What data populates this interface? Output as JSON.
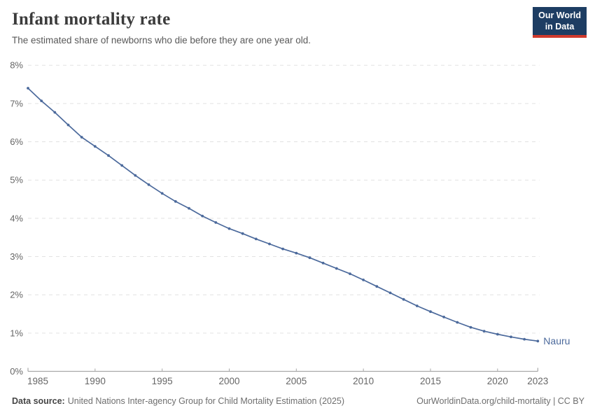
{
  "header": {
    "title": "Infant mortality rate",
    "subtitle": "The estimated share of newborns who die before they are one year old.",
    "logo": {
      "line1": "Our World",
      "line2": "in Data",
      "bg_color": "#1d3d63",
      "accent_color": "#cf3a2d"
    }
  },
  "chart_data": {
    "type": "line",
    "title": "Infant mortality rate",
    "xlabel": "",
    "ylabel": "",
    "grid": "horizontal-dashed",
    "legend_position": "end-of-line-label",
    "xlim": [
      1985,
      2023
    ],
    "ylim": [
      0,
      8
    ],
    "x_ticks": [
      1985,
      1990,
      1995,
      2000,
      2005,
      2010,
      2015,
      2020,
      2023
    ],
    "y_tick_values": [
      0,
      1,
      2,
      3,
      4,
      5,
      6,
      7,
      8
    ],
    "y_tick_labels": [
      "0%",
      "1%",
      "2%",
      "3%",
      "4%",
      "5%",
      "6%",
      "7%",
      "8%"
    ],
    "years": [
      1985,
      1986,
      1987,
      1988,
      1989,
      1990,
      1991,
      1992,
      1993,
      1994,
      1995,
      1996,
      1997,
      1998,
      1999,
      2000,
      2001,
      2002,
      2003,
      2004,
      2005,
      2006,
      2007,
      2008,
      2009,
      2010,
      2011,
      2012,
      2013,
      2014,
      2015,
      2016,
      2017,
      2018,
      2019,
      2020,
      2021,
      2022,
      2023
    ],
    "series": [
      {
        "name": "Nauru",
        "color": "#4c6a9c",
        "values": [
          7.4,
          7.07,
          6.77,
          6.44,
          6.12,
          5.88,
          5.64,
          5.38,
          5.12,
          4.88,
          4.65,
          4.44,
          4.26,
          4.06,
          3.89,
          3.73,
          3.6,
          3.46,
          3.33,
          3.2,
          3.09,
          2.97,
          2.83,
          2.69,
          2.55,
          2.39,
          2.22,
          2.05,
          1.88,
          1.71,
          1.56,
          1.42,
          1.28,
          1.15,
          1.05,
          0.97,
          0.9,
          0.84,
          0.79
        ]
      }
    ],
    "colors": {
      "line": "#4c6a9c",
      "gridline": "#e2e2e2",
      "axis": "#a8a8a8",
      "tick_label": "#666666"
    }
  },
  "footer": {
    "source_label": "Data source:",
    "source_text": "United Nations Inter-agency Group for Child Mortality Estimation (2025)",
    "link_text": "OurWorldinData.org/child-mortality | CC BY"
  }
}
